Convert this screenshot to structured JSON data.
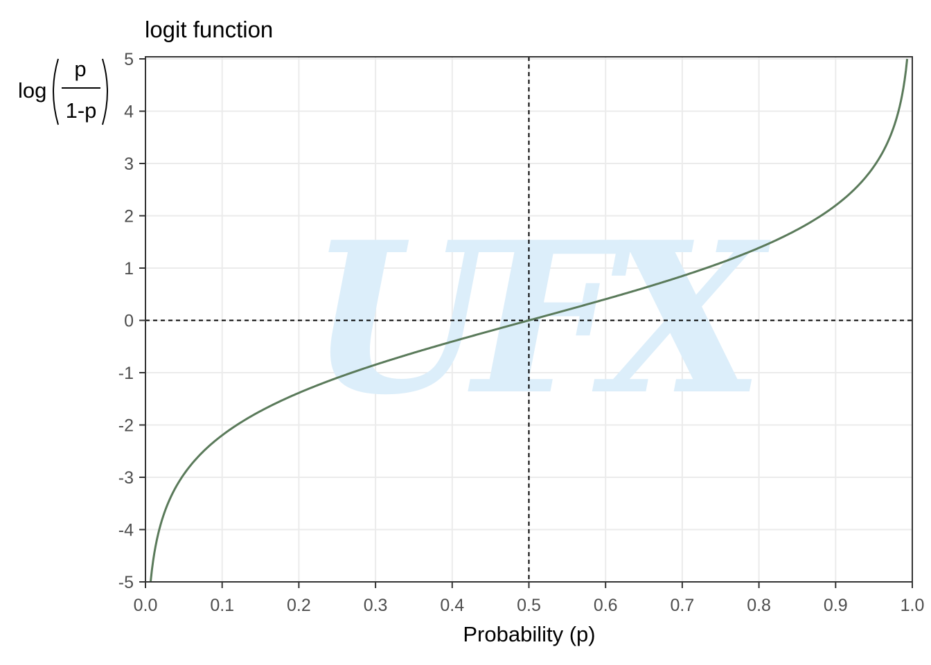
{
  "chart_data": {
    "type": "line",
    "title": "logit function",
    "xlabel": "Probability (p)",
    "ylabel": {
      "prefix": "log",
      "numerator": "p",
      "denominator": "1-p"
    },
    "xlim": [
      0.0,
      1.0
    ],
    "ylim": [
      -5,
      5
    ],
    "x_ticks": [
      "0.0",
      "0.1",
      "0.2",
      "0.3",
      "0.4",
      "0.5",
      "0.6",
      "0.7",
      "0.8",
      "0.9",
      "1.0"
    ],
    "y_ticks": [
      "5",
      "4",
      "3",
      "2",
      "1",
      "0",
      "-1",
      "-2",
      "-3",
      "-4",
      "-5"
    ],
    "grid": true,
    "reference_lines": {
      "vertical_x": 0.5,
      "horizontal_y": 0
    },
    "series": [
      {
        "function": "log(p/(1-p))",
        "x": [
          0.0067,
          0.01,
          0.02,
          0.03,
          0.05,
          0.07,
          0.1,
          0.15,
          0.2,
          0.25,
          0.3,
          0.35,
          0.4,
          0.45,
          0.5,
          0.55,
          0.6,
          0.65,
          0.7,
          0.75,
          0.8,
          0.85,
          0.9,
          0.93,
          0.95,
          0.97,
          0.98,
          0.99,
          0.9933
        ],
        "y": [
          -4.997,
          -4.595,
          -3.892,
          -3.476,
          -2.944,
          -2.587,
          -2.197,
          -1.735,
          -1.386,
          -1.099,
          -0.847,
          -0.619,
          -0.405,
          -0.201,
          0.0,
          0.201,
          0.405,
          0.619,
          0.847,
          1.099,
          1.386,
          1.735,
          2.197,
          2.587,
          2.944,
          3.476,
          3.892,
          4.595,
          4.997
        ],
        "color": "#5a7a5a"
      }
    ],
    "watermark": {
      "text": "UFX",
      "color": "#dceefa"
    }
  }
}
